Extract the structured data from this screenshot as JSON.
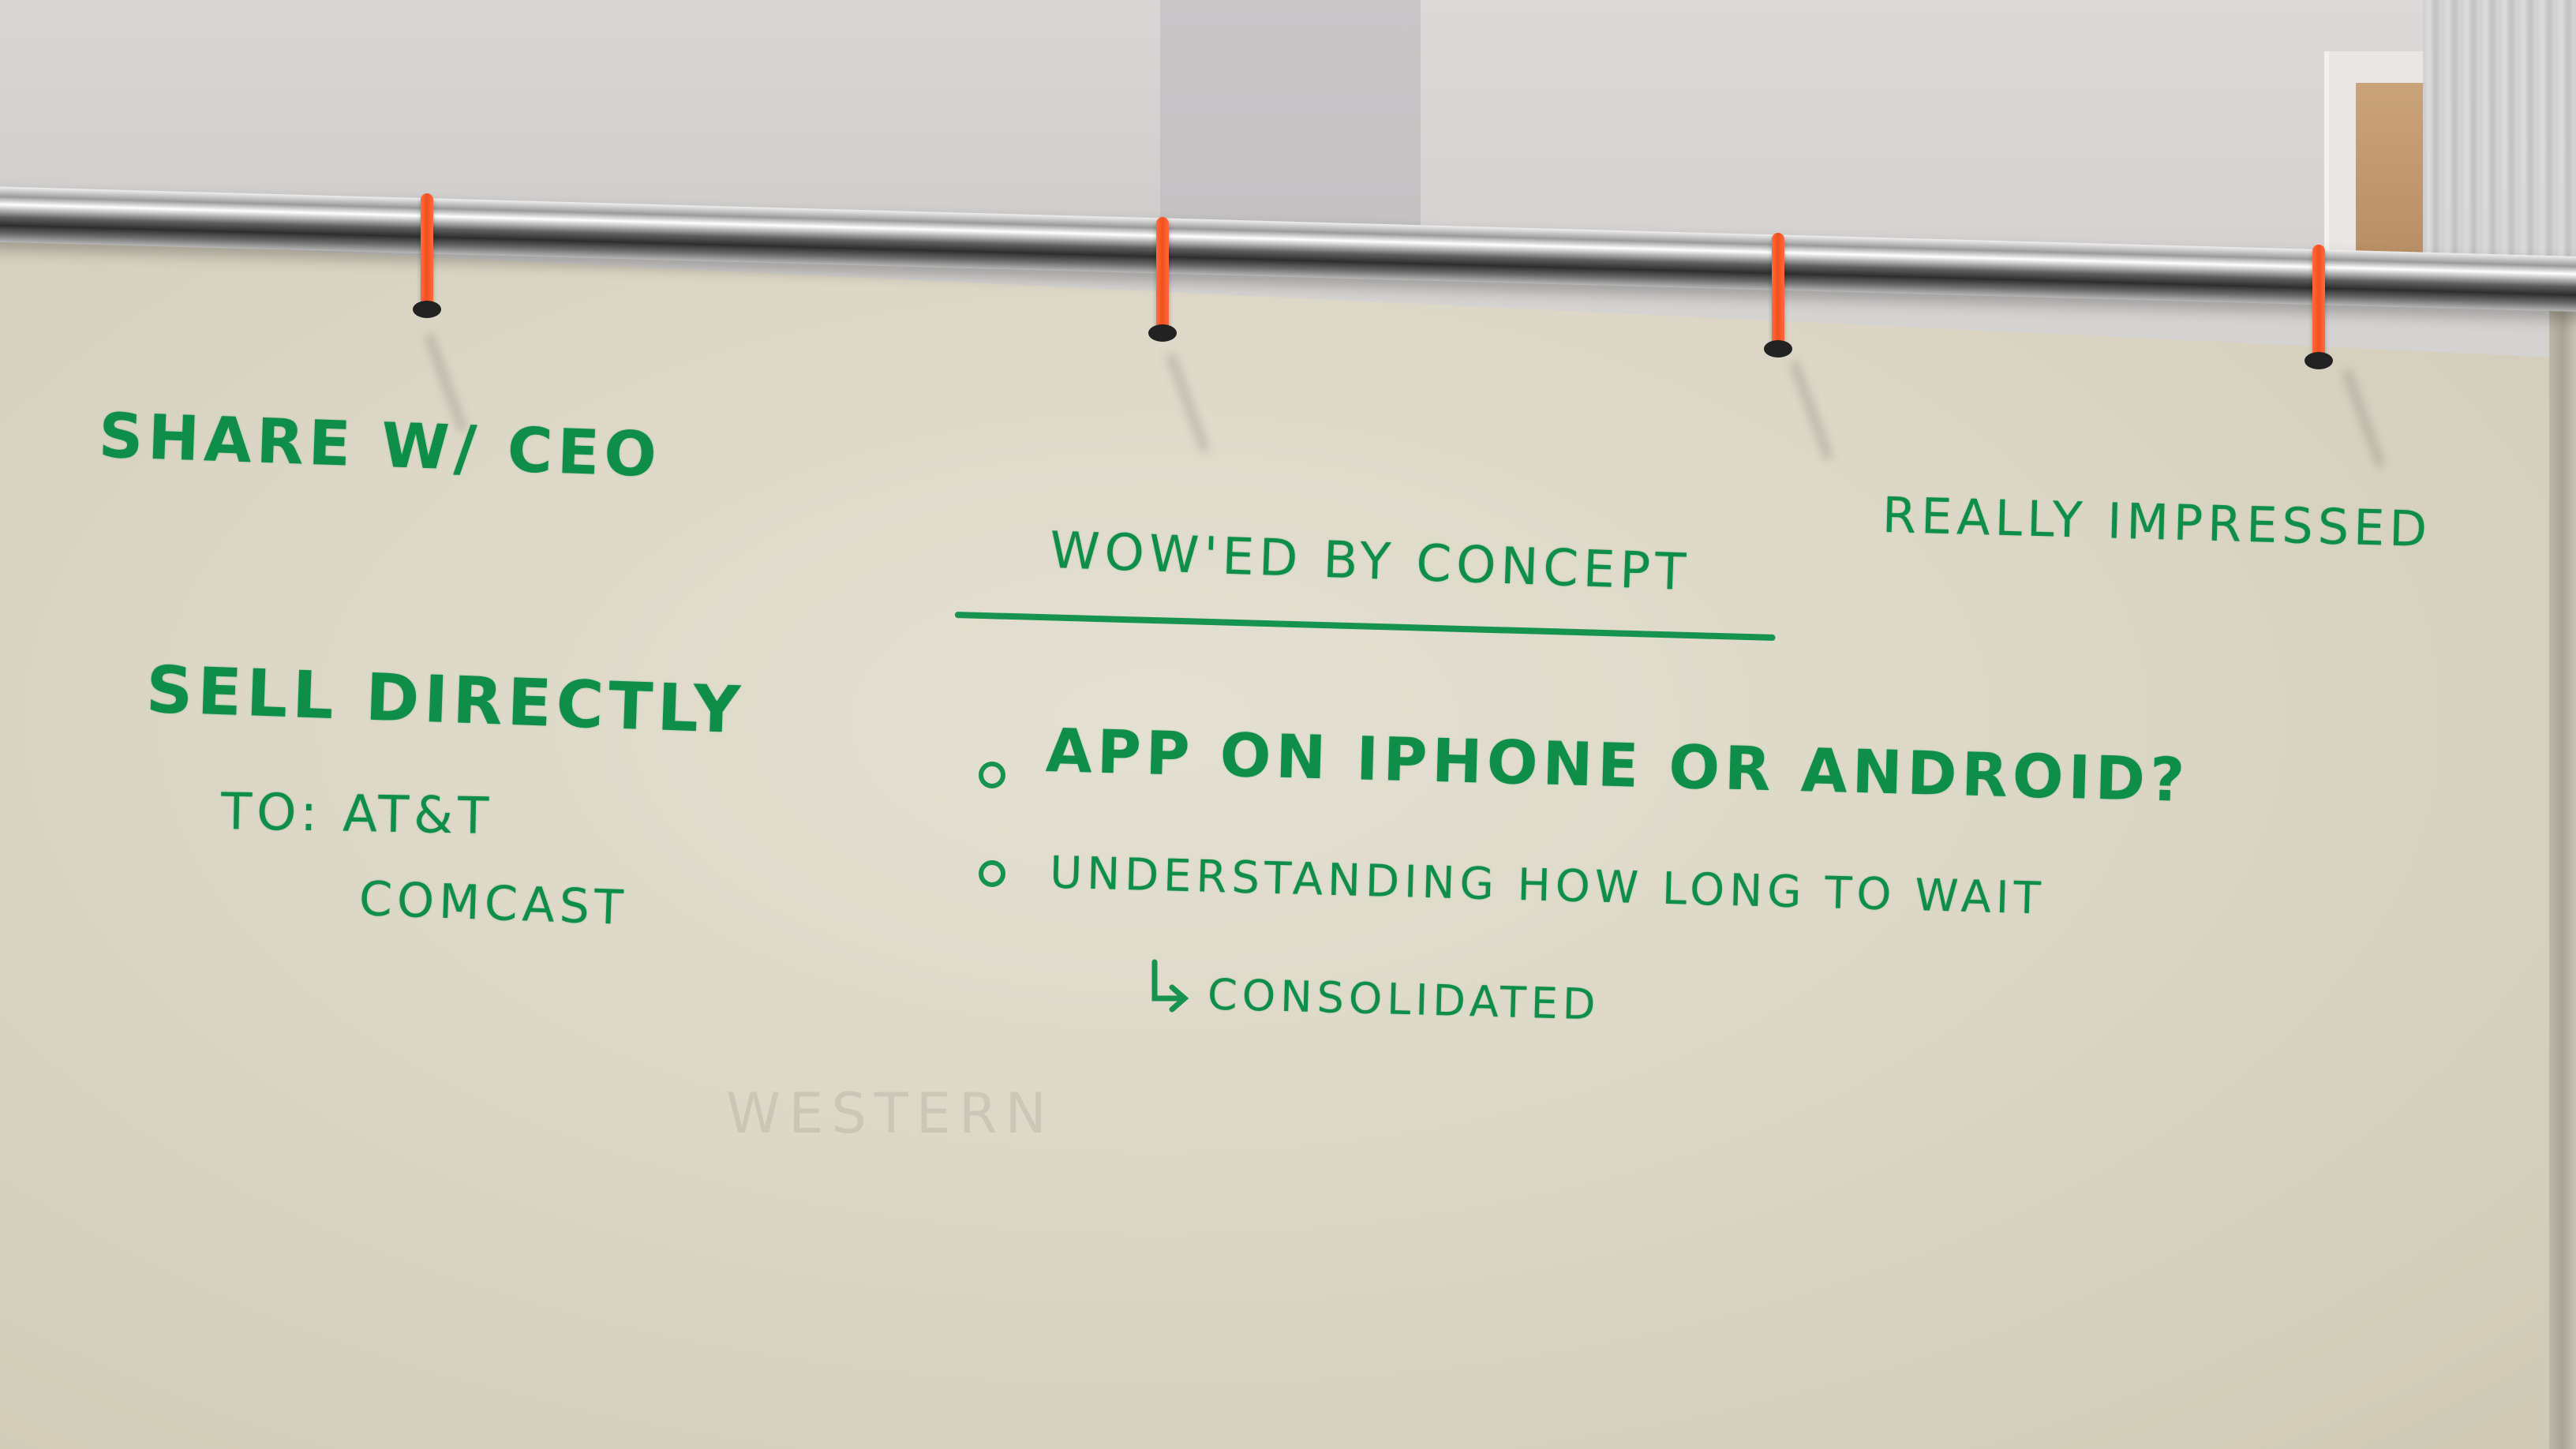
{
  "colors": {
    "marker_green": "#0f8e4a",
    "zip_tie_orange": "#f24f1e",
    "board_white": "#e0dccc"
  },
  "whiteboard": {
    "left_notes": {
      "share": "SHARE W/ CEO",
      "sell": "SELL DIRECTLY",
      "to": "TO: AT&T",
      "comcast": "COMCAST"
    },
    "heading": "WOW'ED BY CONCEPT",
    "right_note": "REALLY IMPRESSED",
    "bullets": [
      "APP ON IPHONE OR ANDROID?",
      "UNDERSTANDING HOW LONG TO WAIT"
    ],
    "sub_note": "CONSOLIDATED"
  }
}
